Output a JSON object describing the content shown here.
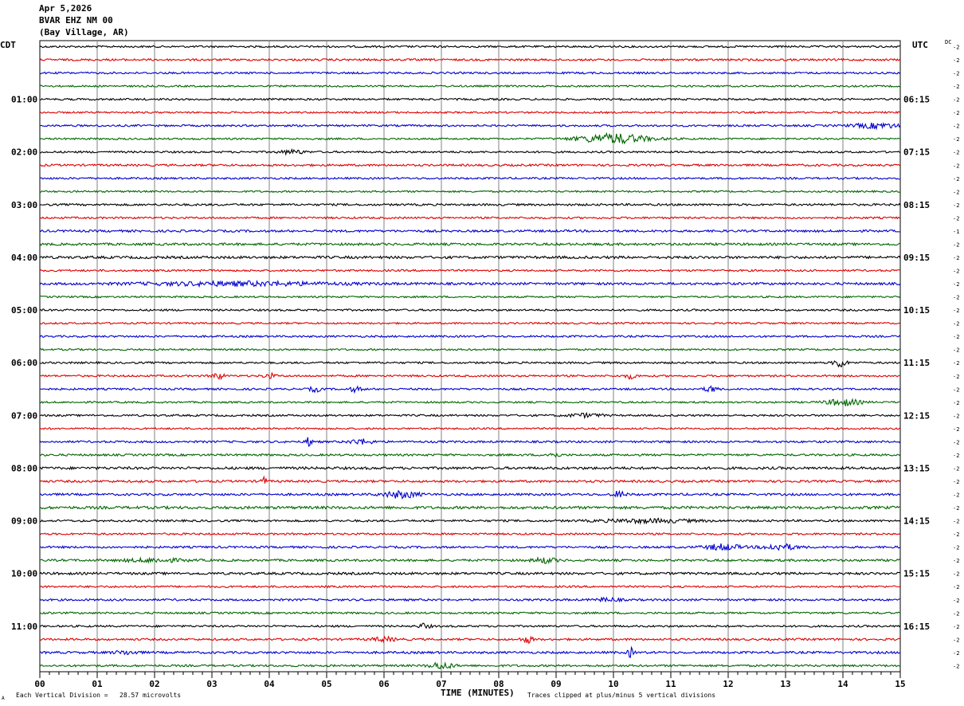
{
  "header": {
    "date": "Apr 5,2026",
    "station": "BVAR EHZ NM 00",
    "location": "(Bay Village, AR)"
  },
  "footer": {
    "scale_note": "Each Vertical Division =   28.57 microvolts",
    "clip_note": "Traces clipped at plus/minus 5 vertical divisions",
    "corner_mark": "A"
  },
  "chart_data": {
    "type": "line",
    "title": "",
    "xlabel": "TIME (MINUTES)",
    "xlim": [
      0,
      15
    ],
    "x_ticks": [
      "00",
      "01",
      "02",
      "03",
      "04",
      "05",
      "06",
      "07",
      "08",
      "09",
      "10",
      "11",
      "12",
      "13",
      "14",
      "15"
    ],
    "left_axis_label": "CDT",
    "right_axis_label": "UTC",
    "dc_label": "DC",
    "trace_colors": [
      "#000000",
      "#dd0000",
      "#0000cc",
      "#006600"
    ],
    "grid": true,
    "left_hour_labels": [
      "01:00",
      "02:00",
      "03:00",
      "04:00",
      "05:00",
      "06:00",
      "07:00",
      "08:00",
      "09:00",
      "10:00",
      "11:00"
    ],
    "right_hour_labels": [
      "06:15",
      "07:15",
      "08:15",
      "09:15",
      "10:15",
      "11:15",
      "12:15",
      "13:15",
      "14:15",
      "15:15",
      "16:15"
    ],
    "traces": [
      {
        "dc": "-2",
        "amp": 1.2,
        "events": []
      },
      {
        "dc": "-2",
        "amp": 1.3,
        "events": []
      },
      {
        "dc": "-2",
        "amp": 1.2,
        "events": []
      },
      {
        "dc": "-2",
        "amp": 1.1,
        "events": []
      },
      {
        "dc": "-2",
        "amp": 1.2,
        "events": []
      },
      {
        "dc": "-2",
        "amp": 1.1,
        "events": []
      },
      {
        "dc": "-2",
        "amp": 1.2,
        "events": [
          [
            14.6,
            0.4,
            3
          ]
        ]
      },
      {
        "dc": "-2",
        "amp": 1.1,
        "events": [
          [
            10.0,
            0.6,
            6
          ]
        ]
      },
      {
        "dc": "-2",
        "amp": 1.2,
        "events": [
          [
            4.4,
            0.2,
            2.5
          ]
        ]
      },
      {
        "dc": "-2",
        "amp": 1.3,
        "events": []
      },
      {
        "dc": "-2",
        "amp": 1.2,
        "events": []
      },
      {
        "dc": "-2",
        "amp": 1.1,
        "events": []
      },
      {
        "dc": "-2",
        "amp": 1.3,
        "events": []
      },
      {
        "dc": "-2",
        "amp": 1.2,
        "events": []
      },
      {
        "dc": "-1",
        "amp": 1.4,
        "events": []
      },
      {
        "dc": "-2",
        "amp": 1.5,
        "events": []
      },
      {
        "dc": "-2",
        "amp": 1.6,
        "events": []
      },
      {
        "dc": "-2",
        "amp": 1.2,
        "events": []
      },
      {
        "dc": "-2",
        "amp": 1.5,
        "events": [
          [
            3.5,
            1.6,
            2.2
          ]
        ]
      },
      {
        "dc": "-2",
        "amp": 1.1,
        "events": []
      },
      {
        "dc": "-2",
        "amp": 1.2,
        "events": []
      },
      {
        "dc": "-2",
        "amp": 1.1,
        "events": []
      },
      {
        "dc": "-2",
        "amp": 1.2,
        "events": []
      },
      {
        "dc": "-2",
        "amp": 1.1,
        "events": []
      },
      {
        "dc": "-2",
        "amp": 1.2,
        "events": [
          [
            13.95,
            0.1,
            6
          ]
        ]
      },
      {
        "dc": "-2",
        "amp": 1.2,
        "events": [
          [
            3.1,
            0.1,
            4
          ],
          [
            4.0,
            0.1,
            3
          ],
          [
            10.3,
            0.1,
            3
          ]
        ]
      },
      {
        "dc": "-2",
        "amp": 1.2,
        "events": [
          [
            4.8,
            0.1,
            3
          ],
          [
            5.5,
            0.1,
            3
          ],
          [
            11.7,
            0.1,
            4
          ]
        ]
      },
      {
        "dc": "-2",
        "amp": 1.1,
        "events": [
          [
            14.0,
            0.3,
            4
          ]
        ]
      },
      {
        "dc": "-2",
        "amp": 1.2,
        "events": [
          [
            9.5,
            0.3,
            2
          ]
        ]
      },
      {
        "dc": "-2",
        "amp": 1.1,
        "events": []
      },
      {
        "dc": "-2",
        "amp": 1.3,
        "events": [
          [
            4.7,
            0.05,
            7
          ],
          [
            5.6,
            0.2,
            3
          ]
        ]
      },
      {
        "dc": "-2",
        "amp": 1.3,
        "events": [
          [
            8.95,
            0.1,
            3
          ]
        ]
      },
      {
        "dc": "-2",
        "amp": 1.6,
        "events": []
      },
      {
        "dc": "-2",
        "amp": 1.4,
        "events": [
          [
            3.9,
            0.05,
            5
          ]
        ]
      },
      {
        "dc": "-2",
        "amp": 1.4,
        "events": [
          [
            6.3,
            0.3,
            4
          ],
          [
            10.1,
            0.1,
            4
          ]
        ]
      },
      {
        "dc": "-2",
        "amp": 1.7,
        "events": []
      },
      {
        "dc": "-2",
        "amp": 1.3,
        "events": [
          [
            10.6,
            0.8,
            2
          ]
        ]
      },
      {
        "dc": "-2",
        "amp": 1.2,
        "events": []
      },
      {
        "dc": "-2",
        "amp": 1.3,
        "events": [
          [
            11.9,
            0.3,
            3.5
          ],
          [
            12.9,
            0.3,
            3.5
          ]
        ]
      },
      {
        "dc": "-2",
        "amp": 1.4,
        "events": [
          [
            2.0,
            0.5,
            2
          ],
          [
            8.8,
            0.2,
            3
          ]
        ]
      },
      {
        "dc": "-2",
        "amp": 1.5,
        "events": []
      },
      {
        "dc": "-2",
        "amp": 1.2,
        "events": []
      },
      {
        "dc": "-2",
        "amp": 1.3,
        "events": [
          [
            9.9,
            0.2,
            2
          ]
        ]
      },
      {
        "dc": "-2",
        "amp": 1.2,
        "events": []
      },
      {
        "dc": "-2",
        "amp": 1.2,
        "events": [
          [
            6.7,
            0.1,
            3
          ]
        ]
      },
      {
        "dc": "-2",
        "amp": 1.3,
        "events": [
          [
            6.0,
            0.2,
            2.5
          ],
          [
            8.5,
            0.1,
            4
          ]
        ]
      },
      {
        "dc": "-2",
        "amp": 1.4,
        "events": [
          [
            1.5,
            0.2,
            2
          ],
          [
            10.3,
            0.05,
            6
          ]
        ]
      },
      {
        "dc": "-2",
        "amp": 1.3,
        "events": [
          [
            7.0,
            0.2,
            4
          ]
        ]
      }
    ]
  }
}
